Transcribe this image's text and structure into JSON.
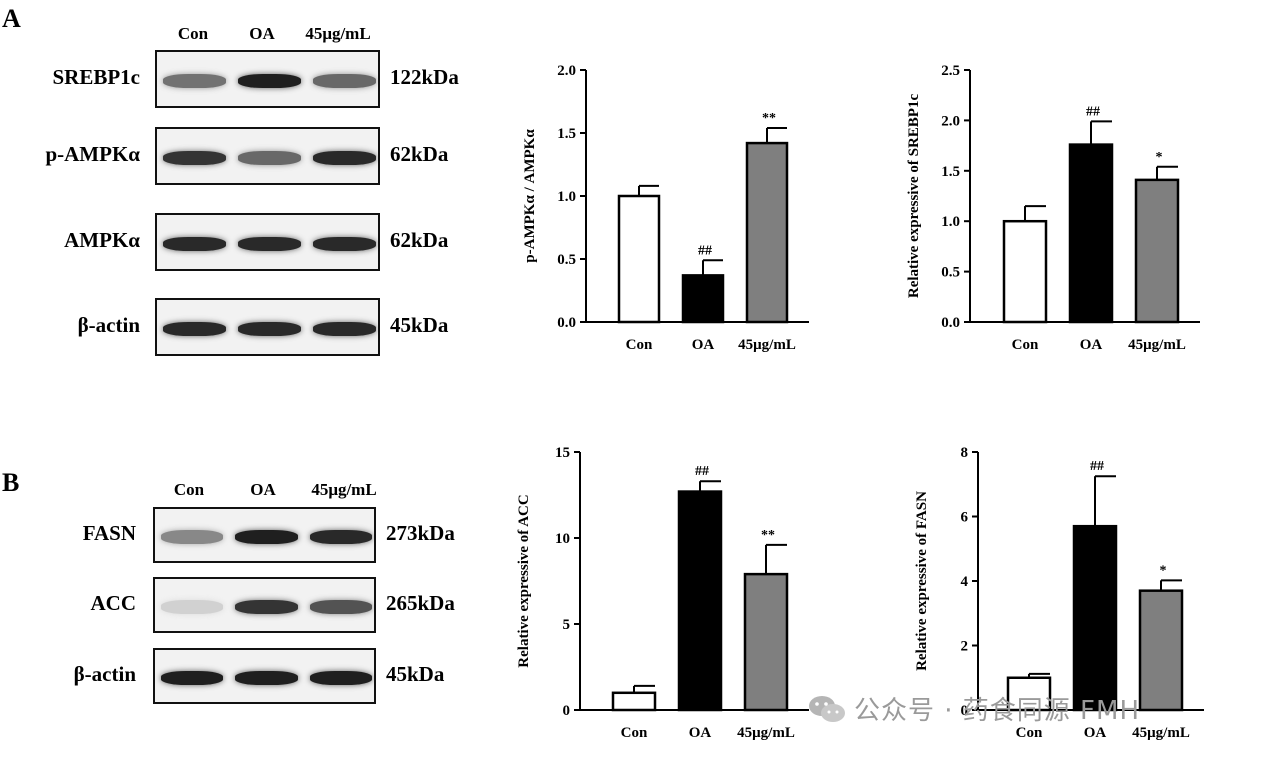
{
  "panels": {
    "A": {
      "label": "A",
      "lanes": [
        "Con",
        "OA",
        "45μg/mL"
      ],
      "blots": [
        {
          "protein": "SREBP1c",
          "kda": "122kDa",
          "intensity": [
            0.55,
            0.95,
            0.6
          ]
        },
        {
          "protein": "p-AMPKα",
          "kda": "62kDa",
          "intensity": [
            0.85,
            0.6,
            0.9
          ]
        },
        {
          "protein": "AMPKα",
          "kda": "62kDa",
          "intensity": [
            0.9,
            0.9,
            0.9
          ]
        },
        {
          "protein": "β-actin",
          "kda": "45kDa",
          "intensity": [
            0.9,
            0.9,
            0.9
          ]
        }
      ]
    },
    "B": {
      "label": "B",
      "lanes": [
        "Con",
        "OA",
        "45μg/mL"
      ],
      "blots": [
        {
          "protein": "FASN",
          "kda": "273kDa",
          "intensity": [
            0.45,
            0.95,
            0.9
          ]
        },
        {
          "protein": "ACC",
          "kda": "265kDa",
          "intensity": [
            0.1,
            0.85,
            0.7
          ]
        },
        {
          "protein": "β-actin",
          "kda": "45kDa",
          "intensity": [
            0.95,
            0.95,
            0.95
          ]
        }
      ]
    }
  },
  "chart_data": [
    {
      "type": "bar",
      "categories": [
        "Con",
        "OA",
        "45μg/mL"
      ],
      "values": [
        1.0,
        0.37,
        1.42
      ],
      "errors": [
        0.08,
        0.12,
        0.12
      ],
      "annotations": [
        "",
        "##",
        "**"
      ],
      "ylabel": "p-AMPKα / AMPKα",
      "ylim": [
        0,
        2.0
      ],
      "yticks": [
        0.0,
        0.5,
        1.0,
        1.5,
        2.0
      ],
      "ytick_labels": [
        "0.0",
        "0.5",
        "1.0",
        "1.5",
        "2.0"
      ],
      "colors": [
        "#ffffff",
        "#000000",
        "#7f7f7f"
      ]
    },
    {
      "type": "bar",
      "categories": [
        "Con",
        "OA",
        "45μg/mL"
      ],
      "values": [
        1.0,
        1.76,
        1.41
      ],
      "errors": [
        0.15,
        0.23,
        0.13
      ],
      "annotations": [
        "",
        "##",
        "*"
      ],
      "ylabel": "Relative expressive of SREBP1c",
      "ylim": [
        0,
        2.5
      ],
      "yticks": [
        0.0,
        0.5,
        1.0,
        1.5,
        2.0,
        2.5
      ],
      "ytick_labels": [
        "0.0",
        "0.5",
        "1.0",
        "1.5",
        "2.0",
        "2.5"
      ],
      "colors": [
        "#ffffff",
        "#000000",
        "#7f7f7f"
      ]
    },
    {
      "type": "bar",
      "categories": [
        "Con",
        "OA",
        "45μg/mL"
      ],
      "values": [
        1.0,
        12.7,
        7.9
      ],
      "errors": [
        0.4,
        0.6,
        1.7
      ],
      "annotations": [
        "",
        "##",
        "**"
      ],
      "ylabel": "Relative expressive of ACC",
      "ylim": [
        0,
        15
      ],
      "yticks": [
        0,
        5,
        10,
        15
      ],
      "ytick_labels": [
        "0",
        "5",
        "10",
        "15"
      ],
      "colors": [
        "#ffffff",
        "#000000",
        "#7f7f7f"
      ]
    },
    {
      "type": "bar",
      "categories": [
        "Con",
        "OA",
        "45μg/mL"
      ],
      "values": [
        1.0,
        5.7,
        3.7
      ],
      "errors": [
        0.12,
        1.55,
        0.32
      ],
      "annotations": [
        "",
        "##",
        "*"
      ],
      "ylabel": "Relative expressive of FASN",
      "ylim": [
        0,
        8
      ],
      "yticks": [
        0,
        2,
        4,
        6,
        8
      ],
      "ytick_labels": [
        "0",
        "2",
        "4",
        "6",
        "8"
      ],
      "colors": [
        "#ffffff",
        "#000000",
        "#7f7f7f"
      ]
    }
  ],
  "watermark": {
    "text": "公众号 · 药食同源 FMH",
    "icon": "wechat-icon"
  }
}
